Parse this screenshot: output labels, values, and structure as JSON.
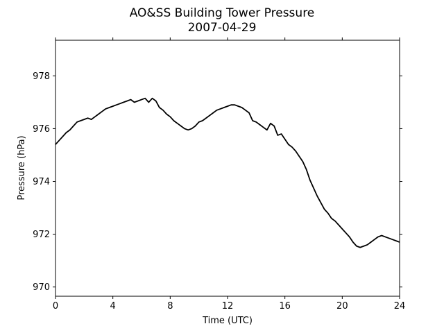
{
  "chart_data": {
    "type": "line",
    "title": "AO&SS Building Tower Pressure",
    "subtitle": "2007-04-29",
    "xlabel": "Time (UTC)",
    "ylabel": "Pressure (hPa)",
    "xlim": [
      0,
      24
    ],
    "ylim": [
      969.65,
      979.35
    ],
    "xticks": [
      0,
      4,
      8,
      12,
      16,
      20,
      24
    ],
    "xtick_labels": [
      "0",
      "4",
      "8",
      "12",
      "16",
      "20",
      "24"
    ],
    "yticks": [
      970,
      972,
      974,
      976,
      978
    ],
    "ytick_labels": [
      "970",
      "972",
      "974",
      "976",
      "978"
    ],
    "grid": false,
    "line_color": "#000000",
    "series": [
      {
        "x": [
          0,
          0.25,
          0.5,
          0.75,
          1.0,
          1.25,
          1.5,
          1.75,
          2.0,
          2.25,
          2.5,
          2.75,
          3.0,
          3.25,
          3.5,
          3.75,
          4.0,
          4.25,
          4.5,
          4.75,
          5.0,
          5.25,
          5.5,
          5.75,
          6.0,
          6.25,
          6.5,
          6.75,
          7.0,
          7.25,
          7.5,
          7.75,
          8.0,
          8.25,
          8.5,
          8.75,
          9.0,
          9.25,
          9.5,
          9.75,
          10.0,
          10.25,
          10.5,
          10.75,
          11.0,
          11.25,
          11.5,
          11.75,
          12.0,
          12.25,
          12.5,
          12.75,
          13.0,
          13.25,
          13.5,
          13.75,
          14.0,
          14.25,
          14.5,
          14.75,
          15.0,
          15.25,
          15.5,
          15.75,
          16.0,
          16.25,
          16.5,
          16.75,
          17.0,
          17.25,
          17.5,
          17.75,
          18.0,
          18.25,
          18.5,
          18.75,
          19.0,
          19.25,
          19.5,
          19.75,
          20.0,
          20.25,
          20.5,
          20.75,
          21.0,
          21.25,
          21.5,
          21.75,
          22.0,
          22.25,
          22.5,
          22.75,
          23.0,
          23.25,
          23.5,
          23.75,
          24.0
        ],
        "values": [
          975.4,
          975.55,
          975.7,
          975.85,
          975.95,
          976.1,
          976.25,
          976.3,
          976.35,
          976.4,
          976.35,
          976.45,
          976.55,
          976.65,
          976.75,
          976.8,
          976.85,
          976.9,
          976.95,
          977.0,
          977.05,
          977.1,
          977.0,
          977.05,
          977.1,
          977.15,
          977.0,
          977.15,
          977.05,
          976.8,
          976.7,
          976.55,
          976.45,
          976.3,
          976.2,
          976.1,
          976.0,
          975.95,
          976.0,
          976.1,
          976.25,
          976.3,
          976.4,
          976.5,
          976.6,
          976.7,
          976.75,
          976.8,
          976.85,
          976.9,
          976.9,
          976.85,
          976.8,
          976.7,
          976.6,
          976.3,
          976.25,
          976.15,
          976.05,
          975.95,
          976.2,
          976.1,
          975.75,
          975.8,
          975.6,
          975.4,
          975.3,
          975.15,
          974.95,
          974.75,
          974.45,
          974.05,
          973.75,
          973.45,
          973.2,
          972.95,
          972.8,
          972.6,
          972.5,
          972.35,
          972.2,
          972.05,
          971.9,
          971.7,
          971.55,
          971.5,
          971.55,
          971.6,
          971.7,
          971.8,
          971.9,
          971.95,
          971.9,
          971.85,
          971.8,
          971.75,
          971.7
        ]
      }
    ]
  }
}
